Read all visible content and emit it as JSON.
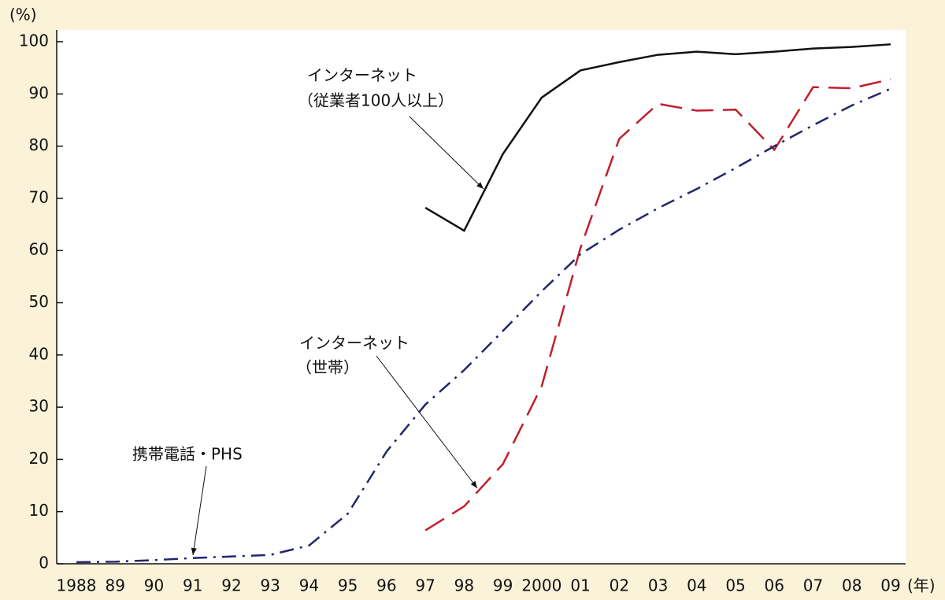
{
  "chart_data": {
    "type": "line",
    "y_unit": "(%)",
    "x_unit": "(年)",
    "categories": [
      "1988",
      "89",
      "90",
      "91",
      "92",
      "93",
      "94",
      "95",
      "96",
      "97",
      "98",
      "99",
      "2000",
      "01",
      "02",
      "03",
      "04",
      "05",
      "06",
      "07",
      "08",
      "09"
    ],
    "series": [
      {
        "color": "#111111",
        "dash": "solid",
        "values": [
          null,
          null,
          null,
          null,
          null,
          null,
          null,
          null,
          null,
          68.2,
          63.8,
          78.5,
          89.3,
          94.5,
          96.1,
          97.5,
          98.1,
          97.6,
          98.1,
          98.7,
          99.0,
          99.5
        ]
      },
      {
        "color": "#c0202e",
        "dash": "dashed",
        "values": [
          null,
          null,
          null,
          null,
          null,
          null,
          null,
          null,
          null,
          6.4,
          11.0,
          19.1,
          34.0,
          60.5,
          81.4,
          88.1,
          86.8,
          87.0,
          79.3,
          91.3,
          91.1,
          92.8
        ]
      },
      {
        "color": "#22266b",
        "dash": "dashdot",
        "values": [
          0.3,
          0.4,
          0.7,
          1.1,
          1.4,
          1.7,
          3.5,
          9.6,
          21.5,
          30.5,
          37.1,
          44.6,
          52.2,
          59.3,
          64.0,
          68.1,
          71.8,
          75.8,
          80.0,
          84.0,
          87.8,
          91.0
        ]
      }
    ],
    "annotations": [
      {
        "lines": [
          "インターネット",
          "（従業者100人以上）"
        ]
      },
      {
        "lines": [
          "インターネット",
          "（世帯）"
        ]
      },
      {
        "lines": [
          "携帯電話・PHS"
        ]
      }
    ],
    "ylim": [
      0,
      100
    ],
    "yticks": [
      0,
      10,
      20,
      30,
      40,
      50,
      60,
      70,
      80,
      90,
      100
    ]
  }
}
